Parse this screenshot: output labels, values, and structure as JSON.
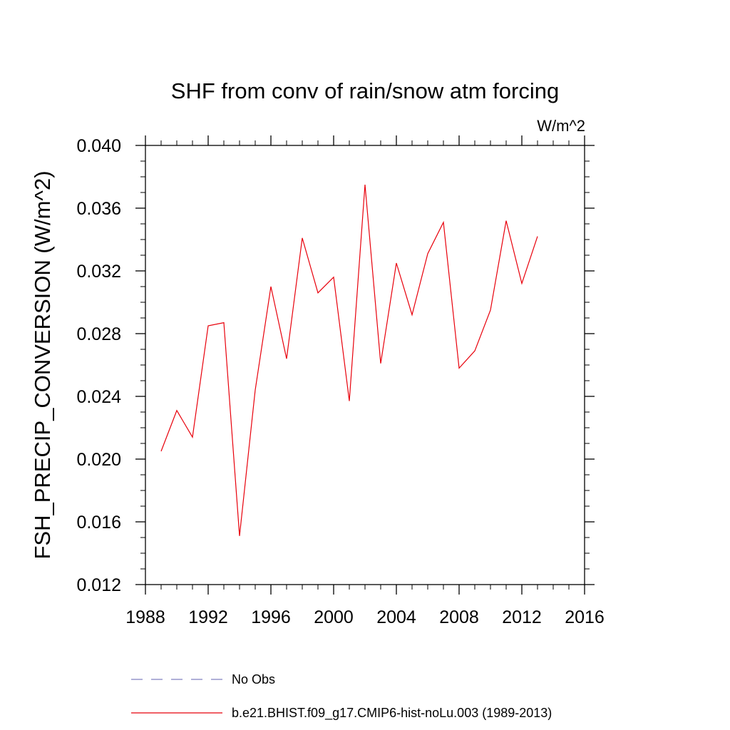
{
  "chart_data": {
    "type": "line",
    "title": "SHF from conv of rain/snow atm forcing",
    "units": "W/m^2",
    "xlabel": "",
    "ylabel": "FSH_PRECIP_CONVERSION  (W/m^2)",
    "xlim": [
      1988,
      2016
    ],
    "ylim": [
      0.012,
      0.04
    ],
    "x_ticks": [
      1988,
      1992,
      1996,
      2000,
      2004,
      2008,
      2012,
      2016
    ],
    "x_tick_labels": [
      "1988",
      "1992",
      "1996",
      "2000",
      "2004",
      "2008",
      "2012",
      "2016"
    ],
    "y_ticks": [
      0.012,
      0.016,
      0.02,
      0.024,
      0.028,
      0.032,
      0.036,
      0.04
    ],
    "y_tick_labels": [
      "0.012",
      "0.016",
      "0.020",
      "0.024",
      "0.028",
      "0.032",
      "0.036",
      "0.040"
    ],
    "series": [
      {
        "name": "b.e21.BHIST.f09_g17.CMIP6-hist-noLu.003 (1989-2013)",
        "color": "#e8000b",
        "style": "solid",
        "x": [
          1989,
          1990,
          1991,
          1992,
          1993,
          1994,
          1995,
          1996,
          1997,
          1998,
          1999,
          2000,
          2001,
          2002,
          2003,
          2004,
          2005,
          2006,
          2007,
          2008,
          2009,
          2010,
          2011,
          2012,
          2013
        ],
        "y": [
          0.0205,
          0.0231,
          0.0214,
          0.0285,
          0.0287,
          0.0151,
          0.0244,
          0.031,
          0.0264,
          0.0341,
          0.0306,
          0.0316,
          0.0237,
          0.0375,
          0.0261,
          0.0325,
          0.0292,
          0.0331,
          0.0351,
          0.0258,
          0.0269,
          0.0295,
          0.0352,
          0.0312,
          0.0342
        ]
      }
    ],
    "legend": [
      {
        "label": "No Obs",
        "color": "#8080c0",
        "style": "dashed"
      },
      {
        "label": "b.e21.BHIST.f09_g17.CMIP6-hist-noLu.003 (1989-2013)",
        "color": "#e8000b",
        "style": "solid"
      }
    ],
    "legend_position": "bottom"
  }
}
